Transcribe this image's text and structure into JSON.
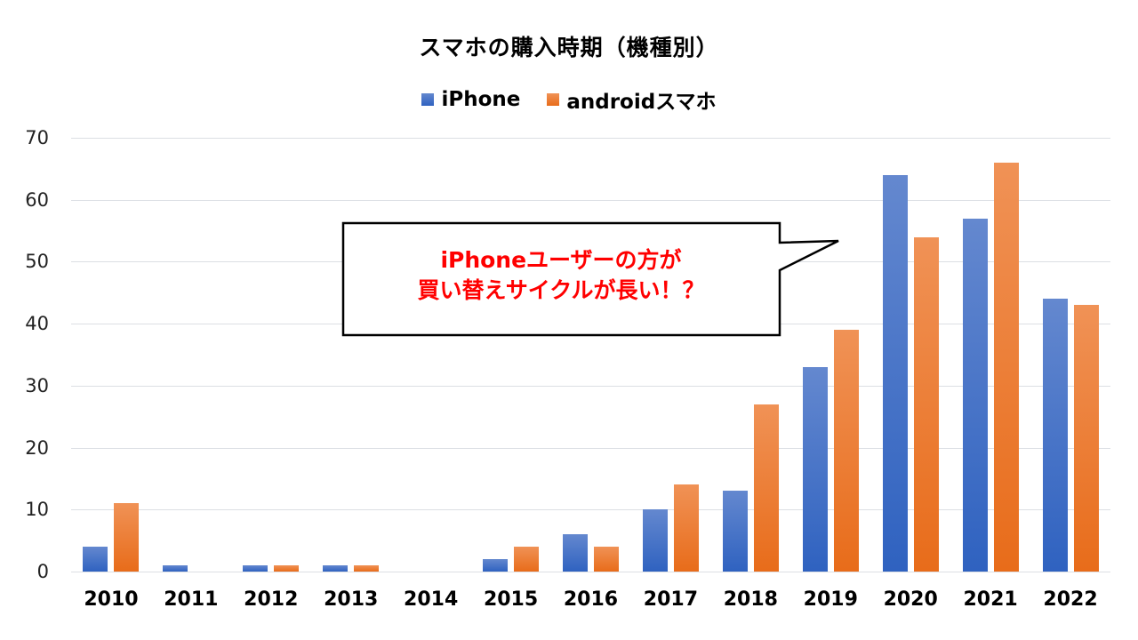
{
  "chart_data": {
    "type": "bar",
    "title": "スマホの購入時期（機種別）",
    "xlabel": "",
    "ylabel": "",
    "ylim": [
      0,
      70
    ],
    "yticks": [
      0,
      10,
      20,
      30,
      40,
      50,
      60,
      70
    ],
    "grid": true,
    "legend_position": "top",
    "categories": [
      "2010",
      "2011",
      "2012",
      "2013",
      "2014",
      "2015",
      "2016",
      "2017",
      "2018",
      "2019",
      "2020",
      "2021",
      "2022"
    ],
    "series": [
      {
        "name": "iPhone",
        "color": "#4472c4",
        "values": [
          4,
          1,
          1,
          1,
          0,
          2,
          6,
          10,
          13,
          33,
          64,
          57,
          44
        ]
      },
      {
        "name": "androidスマホ",
        "color": "#ed7d31",
        "values": [
          11,
          0,
          1,
          1,
          0,
          4,
          4,
          14,
          27,
          39,
          54,
          66,
          43
        ]
      }
    ],
    "annotations": [
      {
        "type": "callout",
        "lines": [
          "iPhoneユーザーの方が",
          "買い替えサイクルが長い！？"
        ],
        "color": "#ff0000"
      }
    ]
  }
}
